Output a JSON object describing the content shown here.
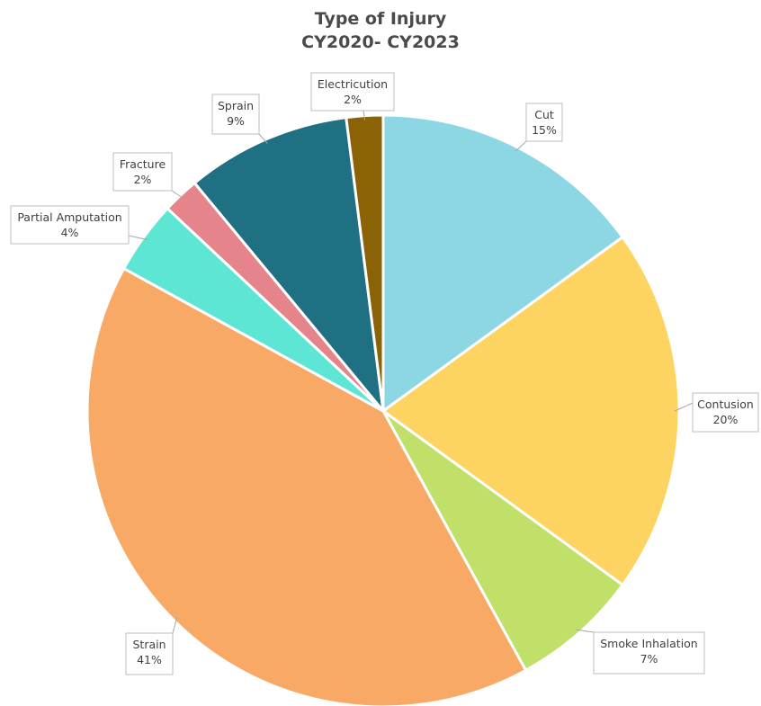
{
  "chart_data": {
    "type": "pie",
    "title": "Type of Injury",
    "subtitle": "CY2020- CY2023",
    "slices": [
      {
        "label": "Cut",
        "value": 15,
        "display": "15%",
        "color": "#8dd6e3"
      },
      {
        "label": "Contusion",
        "value": 20,
        "display": "20%",
        "color": "#fdd462"
      },
      {
        "label": "Smoke Inhalation",
        "value": 7,
        "display": "7%",
        "color": "#c1e06a"
      },
      {
        "label": "Strain",
        "value": 41,
        "display": "41%",
        "color": "#f7a965"
      },
      {
        "label": "Partial Amputation",
        "value": 4,
        "display": "4%",
        "color": "#5ee6d5"
      },
      {
        "label": "Fracture",
        "value": 2,
        "display": "2%",
        "color": "#e5858b"
      },
      {
        "label": "Sprain",
        "value": 9,
        "display": "9%",
        "color": "#1e7082"
      },
      {
        "label": "Electricution",
        "value": 2,
        "display": "2%",
        "color": "#8b6307"
      }
    ],
    "start_angle_deg": 0,
    "direction": "clockwise",
    "legend": "none",
    "data_labels": "callouts"
  }
}
